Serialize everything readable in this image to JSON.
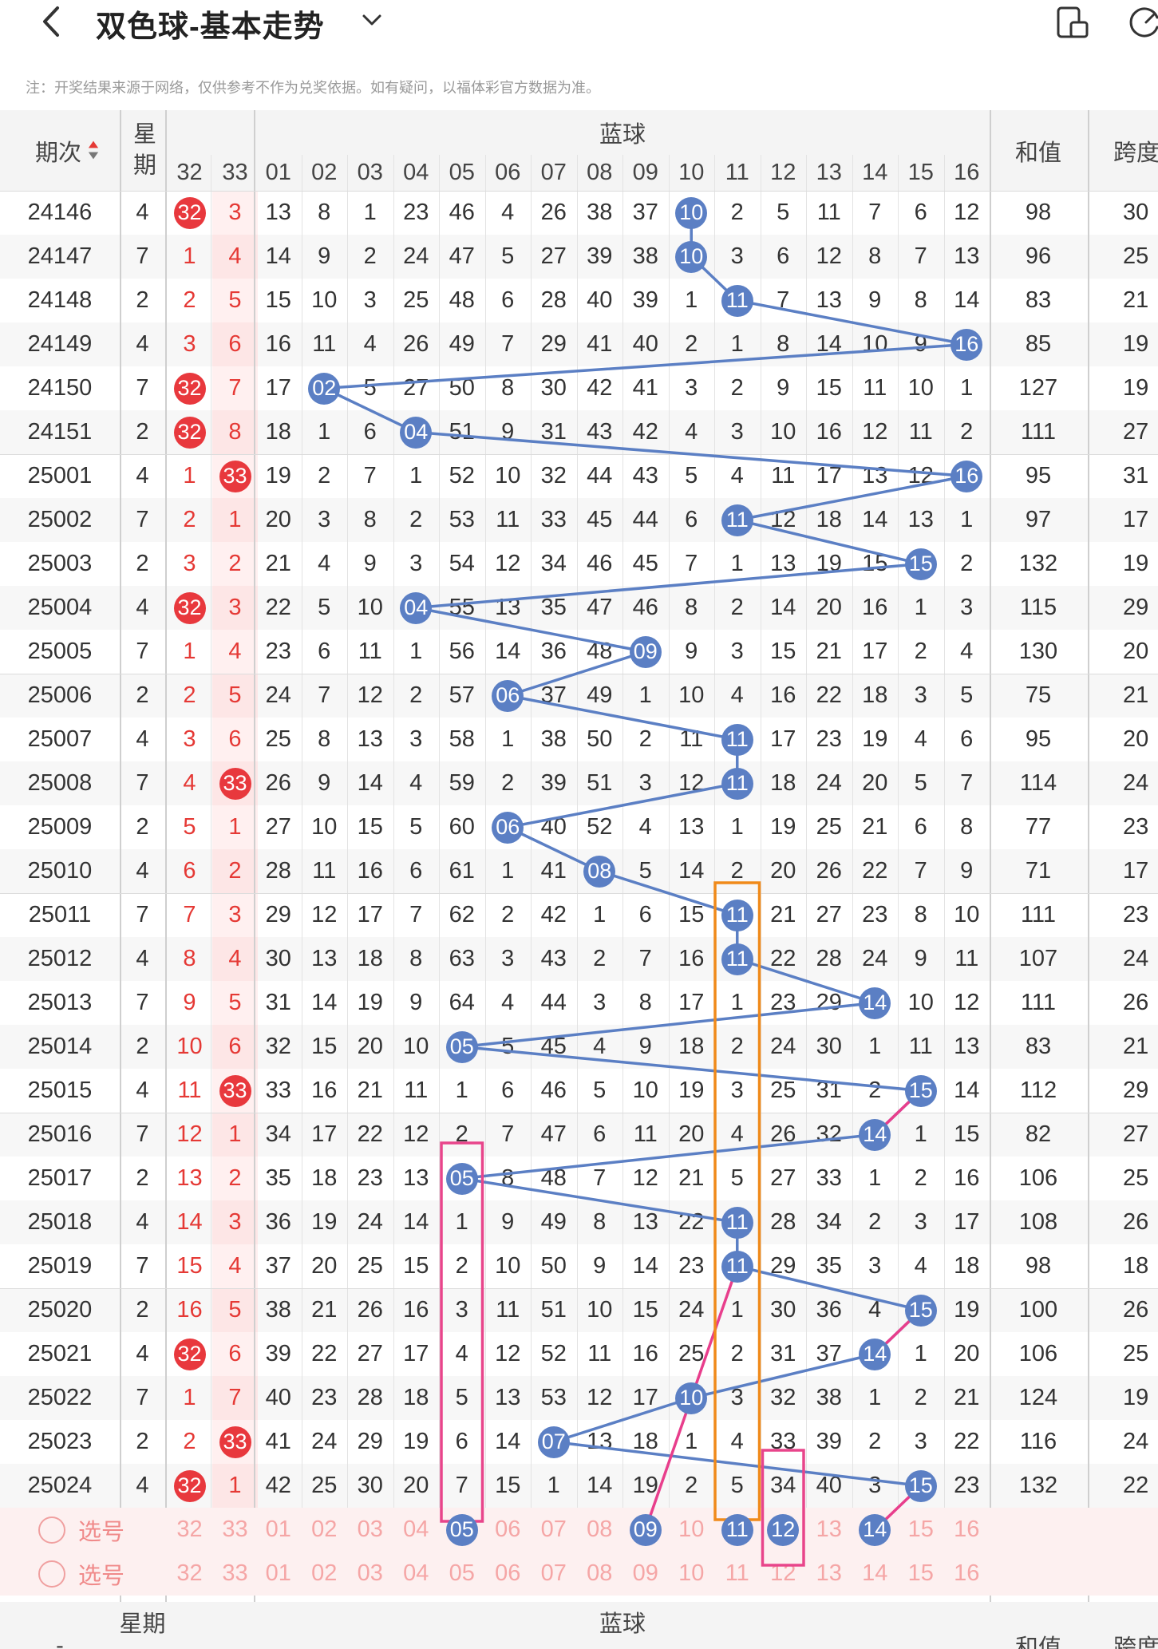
{
  "header": {
    "title": "双色球-基本走势",
    "notice": "注：开奖结果来源于网络，仅供参考不作为兑奖依据。如有疑问，以福体彩官方数据为准。"
  },
  "table": {
    "col_issue": "期次",
    "col_week": "星期",
    "col_blue": "蓝球",
    "col_sum": "和值",
    "col_span": "跨度",
    "red_tail_headers": [
      "32",
      "33"
    ],
    "blue_headers": [
      "01",
      "02",
      "03",
      "04",
      "05",
      "06",
      "07",
      "08",
      "09",
      "10",
      "11",
      "12",
      "13",
      "14",
      "15",
      "16"
    ],
    "rows": [
      {
        "issue": "24146",
        "week": "4",
        "r32": "32",
        "r33": "3",
        "r32ball": true,
        "r33ball": false,
        "blue": [
          "13",
          "8",
          "1",
          "23",
          "46",
          "4",
          "26",
          "38",
          "37",
          "10",
          "2",
          "5",
          "11",
          "7",
          "6",
          "12"
        ],
        "hit": 10,
        "sum": "98",
        "span": "30"
      },
      {
        "issue": "24147",
        "week": "7",
        "r32": "1",
        "r33": "4",
        "r32ball": false,
        "r33ball": false,
        "blue": [
          "14",
          "9",
          "2",
          "24",
          "47",
          "5",
          "27",
          "39",
          "38",
          "10",
          "3",
          "6",
          "12",
          "8",
          "7",
          "13"
        ],
        "hit": 10,
        "sum": "96",
        "span": "25"
      },
      {
        "issue": "24148",
        "week": "2",
        "r32": "2",
        "r33": "5",
        "r32ball": false,
        "r33ball": false,
        "blue": [
          "15",
          "10",
          "3",
          "25",
          "48",
          "6",
          "28",
          "40",
          "39",
          "1",
          "11",
          "7",
          "13",
          "9",
          "8",
          "14"
        ],
        "hit": 11,
        "sum": "83",
        "span": "21"
      },
      {
        "issue": "24149",
        "week": "4",
        "r32": "3",
        "r33": "6",
        "r32ball": false,
        "r33ball": false,
        "blue": [
          "16",
          "11",
          "4",
          "26",
          "49",
          "7",
          "29",
          "41",
          "40",
          "2",
          "1",
          "8",
          "14",
          "10",
          "9",
          "16"
        ],
        "hit": 16,
        "sum": "85",
        "span": "19"
      },
      {
        "issue": "24150",
        "week": "7",
        "r32": "32",
        "r33": "7",
        "r32ball": true,
        "r33ball": false,
        "blue": [
          "17",
          "02",
          "5",
          "27",
          "50",
          "8",
          "30",
          "42",
          "41",
          "3",
          "2",
          "9",
          "15",
          "11",
          "10",
          "1"
        ],
        "hit": 2,
        "sum": "127",
        "span": "19"
      },
      {
        "issue": "24151",
        "week": "2",
        "r32": "32",
        "r33": "8",
        "r32ball": true,
        "r33ball": false,
        "blue": [
          "18",
          "1",
          "6",
          "04",
          "51",
          "9",
          "31",
          "43",
          "42",
          "4",
          "3",
          "10",
          "16",
          "12",
          "11",
          "2"
        ],
        "hit": 4,
        "sum": "111",
        "span": "27"
      },
      {
        "issue": "25001",
        "week": "4",
        "r32": "1",
        "r33": "33",
        "r32ball": false,
        "r33ball": true,
        "blue": [
          "19",
          "2",
          "7",
          "1",
          "52",
          "10",
          "32",
          "44",
          "43",
          "5",
          "4",
          "11",
          "17",
          "13",
          "12",
          "16"
        ],
        "hit": 16,
        "sum": "95",
        "span": "31"
      },
      {
        "issue": "25002",
        "week": "7",
        "r32": "2",
        "r33": "1",
        "r32ball": false,
        "r33ball": false,
        "blue": [
          "20",
          "3",
          "8",
          "2",
          "53",
          "11",
          "33",
          "45",
          "44",
          "6",
          "11",
          "12",
          "18",
          "14",
          "13",
          "1"
        ],
        "hit": 11,
        "sum": "97",
        "span": "17"
      },
      {
        "issue": "25003",
        "week": "2",
        "r32": "3",
        "r33": "2",
        "r32ball": false,
        "r33ball": false,
        "blue": [
          "21",
          "4",
          "9",
          "3",
          "54",
          "12",
          "34",
          "46",
          "45",
          "7",
          "1",
          "13",
          "19",
          "15",
          "15",
          "2"
        ],
        "hit": 15,
        "sum": "132",
        "span": "19"
      },
      {
        "issue": "25004",
        "week": "4",
        "r32": "32",
        "r33": "3",
        "r32ball": true,
        "r33ball": false,
        "blue": [
          "22",
          "5",
          "10",
          "04",
          "55",
          "13",
          "35",
          "47",
          "46",
          "8",
          "2",
          "14",
          "20",
          "16",
          "1",
          "3"
        ],
        "hit": 4,
        "sum": "115",
        "span": "29"
      },
      {
        "issue": "25005",
        "week": "7",
        "r32": "1",
        "r33": "4",
        "r32ball": false,
        "r33ball": false,
        "blue": [
          "23",
          "6",
          "11",
          "1",
          "56",
          "14",
          "36",
          "48",
          "09",
          "9",
          "3",
          "15",
          "21",
          "17",
          "2",
          "4"
        ],
        "hit": 9,
        "sum": "130",
        "span": "20"
      },
      {
        "issue": "25006",
        "week": "2",
        "r32": "2",
        "r33": "5",
        "r32ball": false,
        "r33ball": false,
        "blue": [
          "24",
          "7",
          "12",
          "2",
          "57",
          "06",
          "37",
          "49",
          "1",
          "10",
          "4",
          "16",
          "22",
          "18",
          "3",
          "5"
        ],
        "hit": 6,
        "sum": "75",
        "span": "21"
      },
      {
        "issue": "25007",
        "week": "4",
        "r32": "3",
        "r33": "6",
        "r32ball": false,
        "r33ball": false,
        "blue": [
          "25",
          "8",
          "13",
          "3",
          "58",
          "1",
          "38",
          "50",
          "2",
          "11",
          "11",
          "17",
          "23",
          "19",
          "4",
          "6"
        ],
        "hit": 11,
        "sum": "95",
        "span": "20"
      },
      {
        "issue": "25008",
        "week": "7",
        "r32": "4",
        "r33": "33",
        "r32ball": false,
        "r33ball": true,
        "blue": [
          "26",
          "9",
          "14",
          "4",
          "59",
          "2",
          "39",
          "51",
          "3",
          "12",
          "11",
          "18",
          "24",
          "20",
          "5",
          "7"
        ],
        "hit": 11,
        "sum": "114",
        "span": "24"
      },
      {
        "issue": "25009",
        "week": "2",
        "r32": "5",
        "r33": "1",
        "r32ball": false,
        "r33ball": false,
        "blue": [
          "27",
          "10",
          "15",
          "5",
          "60",
          "06",
          "40",
          "52",
          "4",
          "13",
          "1",
          "19",
          "25",
          "21",
          "6",
          "8"
        ],
        "hit": 6,
        "sum": "77",
        "span": "23"
      },
      {
        "issue": "25010",
        "week": "4",
        "r32": "6",
        "r33": "2",
        "r32ball": false,
        "r33ball": false,
        "blue": [
          "28",
          "11",
          "16",
          "6",
          "61",
          "1",
          "41",
          "08",
          "5",
          "14",
          "2",
          "20",
          "26",
          "22",
          "7",
          "9"
        ],
        "hit": 8,
        "sum": "71",
        "span": "17"
      },
      {
        "issue": "25011",
        "week": "7",
        "r32": "7",
        "r33": "3",
        "r32ball": false,
        "r33ball": false,
        "blue": [
          "29",
          "12",
          "17",
          "7",
          "62",
          "2",
          "42",
          "1",
          "6",
          "15",
          "11",
          "21",
          "27",
          "23",
          "8",
          "10"
        ],
        "hit": 11,
        "sum": "111",
        "span": "23"
      },
      {
        "issue": "25012",
        "week": "4",
        "r32": "8",
        "r33": "4",
        "r32ball": false,
        "r33ball": false,
        "blue": [
          "30",
          "13",
          "18",
          "8",
          "63",
          "3",
          "43",
          "2",
          "7",
          "16",
          "11",
          "22",
          "28",
          "24",
          "9",
          "11"
        ],
        "hit": 11,
        "sum": "107",
        "span": "24"
      },
      {
        "issue": "25013",
        "week": "7",
        "r32": "9",
        "r33": "5",
        "r32ball": false,
        "r33ball": false,
        "blue": [
          "31",
          "14",
          "19",
          "9",
          "64",
          "4",
          "44",
          "3",
          "8",
          "17",
          "1",
          "23",
          "29",
          "14",
          "10",
          "12"
        ],
        "hit": 14,
        "sum": "111",
        "span": "26"
      },
      {
        "issue": "25014",
        "week": "2",
        "r32": "10",
        "r33": "6",
        "r32ball": false,
        "r33ball": false,
        "blue": [
          "32",
          "15",
          "20",
          "10",
          "05",
          "5",
          "45",
          "4",
          "9",
          "18",
          "2",
          "24",
          "30",
          "1",
          "11",
          "13"
        ],
        "hit": 5,
        "sum": "83",
        "span": "21"
      },
      {
        "issue": "25015",
        "week": "4",
        "r32": "11",
        "r33": "33",
        "r32ball": false,
        "r33ball": true,
        "blue": [
          "33",
          "16",
          "21",
          "11",
          "1",
          "6",
          "46",
          "5",
          "10",
          "19",
          "3",
          "25",
          "31",
          "2",
          "15",
          "14"
        ],
        "hit": 15,
        "sum": "112",
        "span": "29"
      },
      {
        "issue": "25016",
        "week": "7",
        "r32": "12",
        "r33": "1",
        "r32ball": false,
        "r33ball": false,
        "blue": [
          "34",
          "17",
          "22",
          "12",
          "2",
          "7",
          "47",
          "6",
          "11",
          "20",
          "4",
          "26",
          "32",
          "14",
          "1",
          "15"
        ],
        "hit": 14,
        "sum": "82",
        "span": "27"
      },
      {
        "issue": "25017",
        "week": "2",
        "r32": "13",
        "r33": "2",
        "r32ball": false,
        "r33ball": false,
        "blue": [
          "35",
          "18",
          "23",
          "13",
          "05",
          "8",
          "48",
          "7",
          "12",
          "21",
          "5",
          "27",
          "33",
          "1",
          "2",
          "16"
        ],
        "hit": 5,
        "sum": "106",
        "span": "25"
      },
      {
        "issue": "25018",
        "week": "4",
        "r32": "14",
        "r33": "3",
        "r32ball": false,
        "r33ball": false,
        "blue": [
          "36",
          "19",
          "24",
          "14",
          "1",
          "9",
          "49",
          "8",
          "13",
          "22",
          "11",
          "28",
          "34",
          "2",
          "3",
          "17"
        ],
        "hit": 11,
        "sum": "108",
        "span": "26"
      },
      {
        "issue": "25019",
        "week": "7",
        "r32": "15",
        "r33": "4",
        "r32ball": false,
        "r33ball": false,
        "blue": [
          "37",
          "20",
          "25",
          "15",
          "2",
          "10",
          "50",
          "9",
          "14",
          "23",
          "11",
          "29",
          "35",
          "3",
          "4",
          "18"
        ],
        "hit": 11,
        "sum": "98",
        "span": "18"
      },
      {
        "issue": "25020",
        "week": "2",
        "r32": "16",
        "r33": "5",
        "r32ball": false,
        "r33ball": false,
        "blue": [
          "38",
          "21",
          "26",
          "16",
          "3",
          "11",
          "51",
          "10",
          "15",
          "24",
          "1",
          "30",
          "36",
          "4",
          "15",
          "19"
        ],
        "hit": 15,
        "sum": "100",
        "span": "26"
      },
      {
        "issue": "25021",
        "week": "4",
        "r32": "32",
        "r33": "6",
        "r32ball": true,
        "r33ball": false,
        "blue": [
          "39",
          "22",
          "27",
          "17",
          "4",
          "12",
          "52",
          "11",
          "16",
          "25",
          "2",
          "31",
          "37",
          "14",
          "1",
          "20"
        ],
        "hit": 14,
        "sum": "106",
        "span": "25"
      },
      {
        "issue": "25022",
        "week": "7",
        "r32": "1",
        "r33": "7",
        "r32ball": false,
        "r33ball": false,
        "blue": [
          "40",
          "23",
          "28",
          "18",
          "5",
          "13",
          "53",
          "12",
          "17",
          "10",
          "3",
          "32",
          "38",
          "1",
          "2",
          "21"
        ],
        "hit": 10,
        "sum": "124",
        "span": "19"
      },
      {
        "issue": "25023",
        "week": "2",
        "r32": "2",
        "r33": "33",
        "r32ball": false,
        "r33ball": true,
        "blue": [
          "41",
          "24",
          "29",
          "19",
          "6",
          "14",
          "07",
          "13",
          "18",
          "1",
          "4",
          "33",
          "39",
          "2",
          "3",
          "22"
        ],
        "hit": 7,
        "sum": "116",
        "span": "24"
      },
      {
        "issue": "25024",
        "week": "4",
        "r32": "32",
        "r33": "1",
        "r32ball": true,
        "r33ball": false,
        "blue": [
          "42",
          "25",
          "30",
          "20",
          "7",
          "15",
          "1",
          "14",
          "19",
          "2",
          "5",
          "34",
          "40",
          "3",
          "15",
          "23"
        ],
        "hit": 15,
        "sum": "132",
        "span": "22"
      }
    ],
    "select_label": "选号",
    "select_rows": [
      {
        "label": "选号",
        "nums": [
          "32",
          "33",
          "01",
          "02",
          "03",
          "04",
          "05",
          "06",
          "07",
          "08",
          "09",
          "10",
          "11",
          "12",
          "13",
          "14",
          "15",
          "16"
        ],
        "selected": [
          "05",
          "09",
          "11",
          "12",
          "14"
        ]
      },
      {
        "label": "选号",
        "nums": [
          "32",
          "33",
          "01",
          "02",
          "03",
          "04",
          "05",
          "06",
          "07",
          "08",
          "09",
          "10",
          "11",
          "12",
          "13",
          "14",
          "15",
          "16"
        ],
        "selected": []
      }
    ],
    "footer": {
      "issue": "-",
      "week": "星期",
      "blue": "蓝球",
      "sum": "和值",
      "span": "跨度"
    }
  },
  "colors": {
    "red_ball": "#e8383d",
    "blue_ball": "#5b7fc4",
    "trend_line": "#5b7fc4",
    "pink_line": "#e83e8c",
    "orange_box": "#f08a1a",
    "pink_box": "#e8458b"
  }
}
